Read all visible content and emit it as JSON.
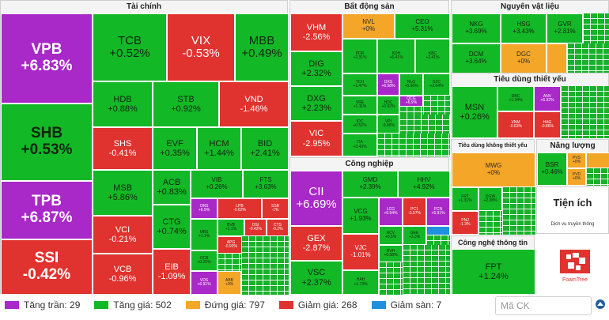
{
  "sections": {
    "finance": "Tài chính",
    "realestate": "Bất động sản",
    "materials": "Nguyên vật liệu",
    "staples": "Tiêu dùng thiết yếu",
    "industrial": "Công nghiệp",
    "discretionary": "Tiêu dùng không thiết yếu",
    "energy": "Năng lượng",
    "utilities": "Tiện ích",
    "utilities_sub": "Dịch vụ truyền thông",
    "tech": "Công nghệ thông tin"
  },
  "finance": [
    {
      "t": "VPB",
      "p": "+6.83%"
    },
    {
      "t": "SHB",
      "p": "+0.53%"
    },
    {
      "t": "TPB",
      "p": "+6.87%"
    },
    {
      "t": "SSI",
      "p": "-0.42%"
    },
    {
      "t": "TCB",
      "p": "+0.52%"
    },
    {
      "t": "VIX",
      "p": "-0.53%"
    },
    {
      "t": "MBB",
      "p": "+0.49%"
    },
    {
      "t": "HDB",
      "p": "+0.88%"
    },
    {
      "t": "STB",
      "p": "+0.92%"
    },
    {
      "t": "VND",
      "p": "-1.46%"
    },
    {
      "t": "SHS",
      "p": "-0.41%"
    },
    {
      "t": "EVF",
      "p": "+0.35%"
    },
    {
      "t": "HCM",
      "p": "+1.44%"
    },
    {
      "t": "BID",
      "p": "+2.41%"
    },
    {
      "t": "MSB",
      "p": "+5.86%"
    },
    {
      "t": "ACB",
      "p": "+0.83%"
    },
    {
      "t": "VIB",
      "p": "+0.26%"
    },
    {
      "t": "FTS",
      "p": "+3.63%"
    },
    {
      "t": "VCI",
      "p": "-0.21%"
    },
    {
      "t": "CTG",
      "p": "+0.74%"
    },
    {
      "t": "ORS",
      "p": "+6.9%"
    },
    {
      "t": "LPB",
      "p": "-0.62%"
    },
    {
      "t": "SSB",
      "p": "-1%"
    },
    {
      "t": "BVB",
      "p": "+1.1%"
    },
    {
      "t": "DSI",
      "p": "-0.42%"
    },
    {
      "t": "CTS",
      "p": "-0.2%"
    },
    {
      "t": "VCB",
      "p": "-0.96%"
    },
    {
      "t": "EIB",
      "p": "-1.09%"
    },
    {
      "t": "MBS",
      "p": "+1.1%"
    },
    {
      "t": "APG",
      "p": "-0.92%"
    },
    {
      "t": "OCB",
      "p": "+0.25%"
    },
    {
      "t": "VDS",
      "p": "+6.91%"
    },
    {
      "t": "ABB",
      "p": "+0%"
    }
  ],
  "realestate": [
    {
      "t": "VHM",
      "p": "-2.56%"
    },
    {
      "t": "NVL",
      "p": "+0%"
    },
    {
      "t": "CEO",
      "p": "+5.31%"
    },
    {
      "t": "DIG",
      "p": "+2.32%"
    },
    {
      "t": "PDR",
      "p": "+2.31%"
    },
    {
      "t": "KDH",
      "p": "+6.41%"
    },
    {
      "t": "KBC",
      "p": "+2.41%"
    },
    {
      "t": "DXG",
      "p": "+2.23%"
    },
    {
      "t": "TCH",
      "p": "+1.47%"
    },
    {
      "t": "DXS",
      "p": "+6.58%"
    },
    {
      "t": "NLG",
      "p": "+0.36%"
    },
    {
      "t": "SZC",
      "p": "+2.04%"
    },
    {
      "t": "VRE",
      "p": "+1.11%"
    },
    {
      "t": "HDC",
      "p": "+0.92%"
    },
    {
      "t": "QCG",
      "p": "+6.9%"
    },
    {
      "t": "VIC",
      "p": "-2.95%"
    },
    {
      "t": "IDC",
      "p": "+0.52%"
    },
    {
      "t": "VPI",
      "p": "-0.96%"
    },
    {
      "t": "ITA",
      "p": "+3.43%"
    }
  ],
  "materials": [
    {
      "t": "NKG",
      "p": "+3.69%"
    },
    {
      "t": "HSG",
      "p": "+3.43%"
    },
    {
      "t": "GVR",
      "p": "+2.81%"
    },
    {
      "t": "DCM",
      "p": "+3.64%"
    },
    {
      "t": "DGC",
      "p": "+0%"
    }
  ],
  "staples": [
    {
      "t": "MSN",
      "p": "+0.26%"
    },
    {
      "t": "DBC",
      "p": "+1.34%"
    },
    {
      "t": "ANV",
      "p": "+6.92%"
    },
    {
      "t": "VNM",
      "p": "-0.63%"
    },
    {
      "t": "HAG",
      "p": "-0.86%"
    }
  ],
  "industrial": [
    {
      "t": "CII",
      "p": "+6.69%"
    },
    {
      "t": "GMD",
      "p": "+2.39%"
    },
    {
      "t": "HHV",
      "p": "+4.92%"
    },
    {
      "t": "VCG",
      "p": "+1.93%"
    },
    {
      "t": "LCG",
      "p": "+6.54%"
    },
    {
      "t": "PC1",
      "p": "-0.57%"
    },
    {
      "t": "FCN",
      "p": "+6.91%"
    },
    {
      "t": "GEX",
      "p": "-2.87%"
    },
    {
      "t": "ACV",
      "p": "+0.5%"
    },
    {
      "t": "VJC",
      "p": "-1.01%"
    },
    {
      "t": "GEE",
      "p": "+3.3%"
    },
    {
      "t": "VSC",
      "p": "+2.37%"
    },
    {
      "t": "HAH",
      "p": "+1.73%"
    },
    {
      "t": "BVH",
      "p": "+0.58%"
    }
  ],
  "discretionary": [
    {
      "t": "MWG",
      "p": "+0%"
    },
    {
      "t": "FRT",
      "p": "+1.31%"
    },
    {
      "t": "PNJ",
      "p": "-1.3%"
    },
    {
      "t": "DGW",
      "p": "+2.38%"
    }
  ],
  "energy": [
    {
      "t": "BSR",
      "p": "+0.46%"
    },
    {
      "t": "PVS",
      "p": "+0%"
    },
    {
      "t": "PVD",
      "p": "+0%"
    }
  ],
  "tech": [
    {
      "t": "FPT",
      "p": "+1.24%"
    }
  ],
  "logo_text": "FoamTree",
  "legend": [
    {
      "label": "Tăng trần: 29",
      "color": "#a928c8"
    },
    {
      "label": "Tăng giá: 502",
      "color": "#13b826"
    },
    {
      "label": "Đứng giá: 797",
      "color": "#f4a628"
    },
    {
      "label": "Giảm giá: 268",
      "color": "#e0322e"
    },
    {
      "label": "Giảm sàn: 7",
      "color": "#1f8fe0"
    }
  ],
  "search": {
    "placeholder": "Mã CK"
  },
  "colors": {
    "ceiling": "#a928c8",
    "up": "#13b826",
    "reference": "#f4a628",
    "down": "#e0322e",
    "floor": "#1f8fe0"
  }
}
